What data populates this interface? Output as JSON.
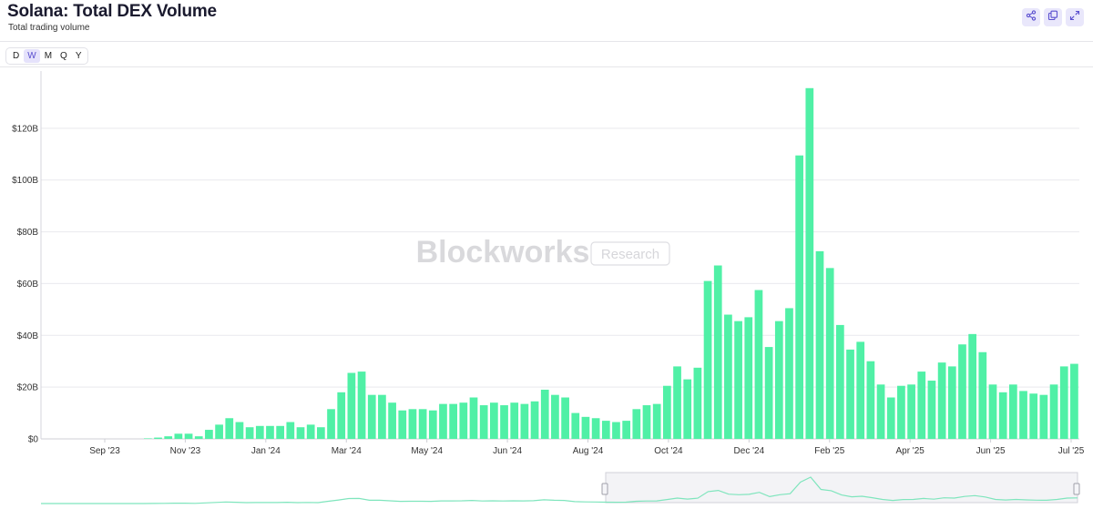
{
  "header": {
    "title": "Solana: Total DEX Volume",
    "subtitle": "Total trading volume"
  },
  "actions": [
    {
      "name": "share-icon",
      "label": "share"
    },
    {
      "name": "copy-icon",
      "label": "copy"
    },
    {
      "name": "expand-icon",
      "label": "expand"
    }
  ],
  "periods": [
    "D",
    "W",
    "M",
    "Q",
    "Y"
  ],
  "active_period": "W",
  "watermark": {
    "brand": "Blockworks",
    "tag": "Research"
  },
  "colors": {
    "bar": "#50f0a6",
    "accent": "#5a4fcf",
    "grid": "#e9e9ee",
    "axis_text": "#333333"
  },
  "chart_data": {
    "type": "bar",
    "title": "Solana: Total DEX Volume",
    "subtitle": "Total trading volume",
    "x_tick_labels": [
      "Sep '23",
      "Nov '23",
      "Jan '24",
      "Mar '24",
      "May '24",
      "Jun '24",
      "Aug '24",
      "Oct '24",
      "Dec '24",
      "Feb '25",
      "Apr '25",
      "Jun '25",
      "Jul '25"
    ],
    "y_tick_labels": [
      "$0",
      "$20B",
      "$40B",
      "$60B",
      "$80B",
      "$100B",
      "$120B"
    ],
    "ylim": [
      0,
      140
    ],
    "y_unit": "B USD",
    "grid": true,
    "series": [
      {
        "values": [
          0,
          0,
          0,
          0,
          0,
          0,
          0,
          0,
          0,
          0,
          0.2,
          0.5,
          1,
          2,
          2,
          1,
          3.5,
          5.5,
          8,
          6.5,
          4.5,
          5,
          5,
          5,
          6.5,
          4.5,
          5.5,
          4.5,
          11.5,
          18,
          25.5,
          26,
          17,
          17,
          14,
          11,
          11.5,
          11.5,
          11,
          13.5,
          13.5,
          14,
          16,
          13,
          14,
          13,
          14,
          13.5,
          14.5,
          19,
          17,
          16,
          10,
          8.5,
          8,
          7,
          6.5,
          7,
          11.5,
          13,
          13.5,
          20.5,
          28,
          23,
          27.5,
          61,
          67,
          48,
          45.5,
          47,
          57.5,
          35.5,
          45.5,
          50.5,
          109.5,
          135.5,
          72.5,
          66,
          44,
          34.5,
          37.5,
          30,
          21,
          16,
          20.5,
          21,
          26,
          22.5,
          29.5,
          28,
          36.5,
          40.5,
          33.5,
          21,
          18,
          21,
          18.5,
          17.5,
          17,
          21,
          28,
          29
        ]
      }
    ]
  }
}
